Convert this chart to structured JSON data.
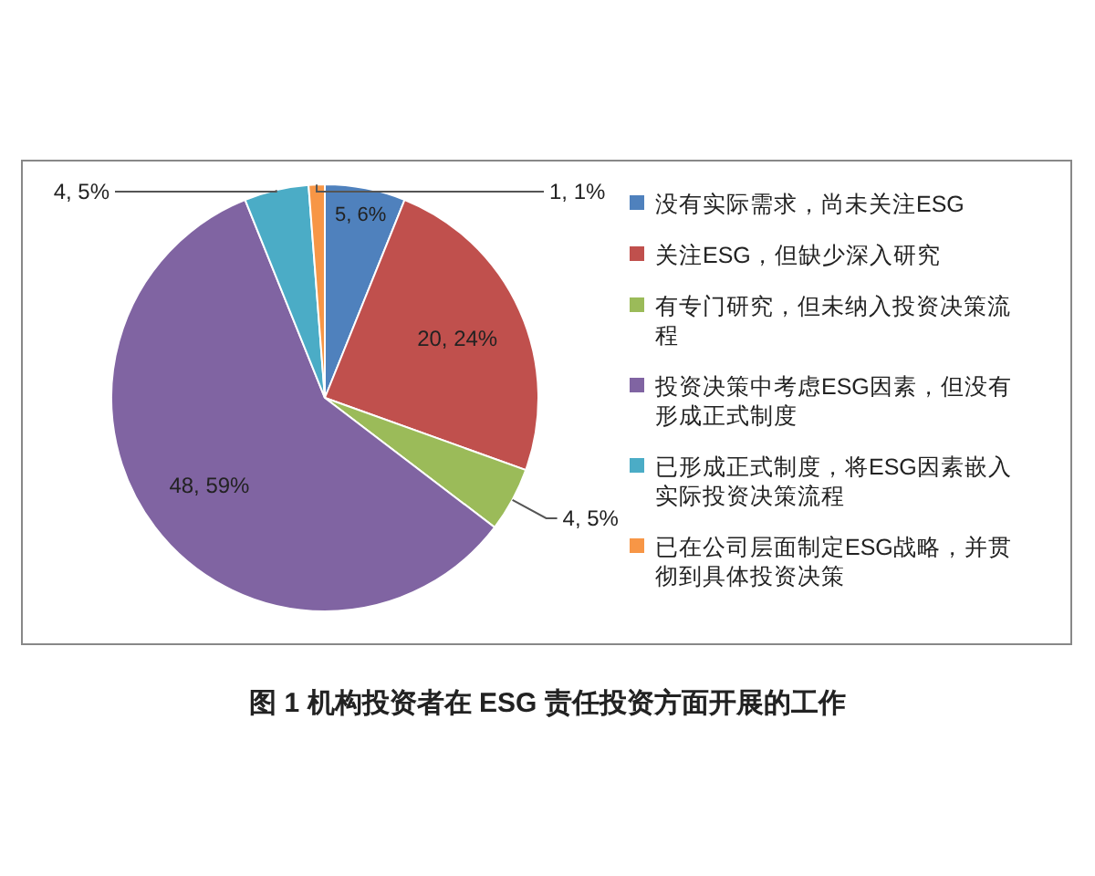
{
  "chart_data": {
    "type": "pie",
    "title": "图 1 机构投资者在 ESG 责任投资方面开展的工作",
    "categories": [
      "没有实际需求，尚未关注ESG",
      "关注ESG，但缺少深入研究",
      "有专门研究，但未纳入投资决策流程",
      "投资决策中考虑ESG因素，但没有形成正式制度",
      "已形成正式制度，将ESG因素嵌入实际投资决策流程",
      "已在公司层面制定ESG战略，并贯彻到具体投资决策"
    ],
    "values": [
      5,
      20,
      4,
      48,
      4,
      1
    ],
    "value_labels": [
      "5, 6%",
      "20, 24%",
      "4, 5%",
      "48, 59%",
      "4, 5%",
      "1, 1%"
    ],
    "colors": [
      "#4f81bd",
      "#c0504d",
      "#9bbb59",
      "#8064a2",
      "#4bacc6",
      "#f79646"
    ],
    "legend": "right"
  }
}
